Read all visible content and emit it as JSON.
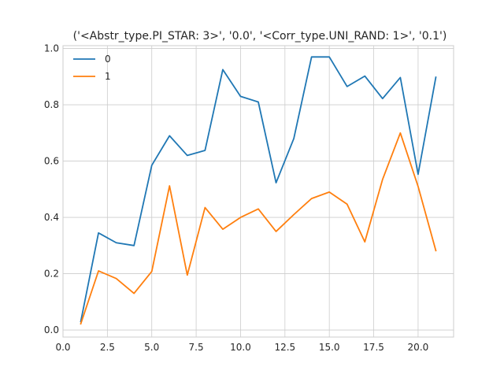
{
  "chart_data": {
    "type": "line",
    "title": "('<Abstr_type.PI_STAR: 3>', '0.0', '<Corr_type.UNI_RAND: 1>', '0.1')",
    "xlabel": "",
    "ylabel": "",
    "xlim": [
      0.0,
      22.0
    ],
    "ylim": [
      -0.025,
      1.01
    ],
    "xticks": [
      0.0,
      2.5,
      5.0,
      7.5,
      10.0,
      12.5,
      15.0,
      17.5,
      20.0
    ],
    "xtick_labels": [
      "0.0",
      "2.5",
      "5.0",
      "7.5",
      "10.0",
      "12.5",
      "15.0",
      "17.5",
      "20.0"
    ],
    "yticks": [
      0.0,
      0.2,
      0.4,
      0.6,
      0.8,
      1.0
    ],
    "ytick_labels": [
      "0.0",
      "0.2",
      "0.4",
      "0.6",
      "0.8",
      "1.0"
    ],
    "grid": true,
    "legend_position": "upper-left",
    "x": [
      1,
      2,
      3,
      4,
      5,
      6,
      7,
      8,
      9,
      10,
      11,
      12,
      13,
      14,
      15,
      16,
      17,
      18,
      19,
      20,
      21
    ],
    "series": [
      {
        "name": "0",
        "color": "#1f77b4",
        "values": [
          0.03,
          0.345,
          0.31,
          0.3,
          0.585,
          0.69,
          0.62,
          0.638,
          0.925,
          0.83,
          0.81,
          0.523,
          0.68,
          0.97,
          0.97,
          0.865,
          0.902,
          0.822,
          0.897,
          0.553,
          0.898
        ]
      },
      {
        "name": "1",
        "color": "#ff7f0e",
        "values": [
          0.022,
          0.21,
          0.183,
          0.13,
          0.208,
          0.512,
          0.195,
          0.435,
          0.358,
          0.4,
          0.43,
          0.35,
          0.41,
          0.467,
          0.49,
          0.447,
          0.313,
          0.535,
          0.7,
          0.51,
          0.282
        ]
      }
    ]
  }
}
